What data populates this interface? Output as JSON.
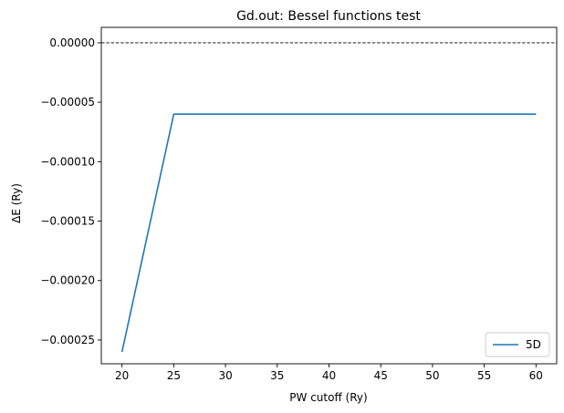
{
  "chart_data": {
    "type": "line",
    "title": "Gd.out: Bessel functions test",
    "xlabel": "PW cutoff (Ry)",
    "ylabel": "ΔE (Ry)",
    "xlim": [
      18.0,
      62.0
    ],
    "ylim": [
      -0.00027,
      1.3e-05
    ],
    "xticks": [
      20,
      25,
      30,
      35,
      40,
      45,
      50,
      55,
      60
    ],
    "xtick_labels": [
      "20",
      "25",
      "30",
      "35",
      "40",
      "45",
      "50",
      "55",
      "60"
    ],
    "yticks": [
      0.0,
      -5e-05,
      -0.0001,
      -0.00015,
      -0.0002,
      -0.00025
    ],
    "ytick_labels": [
      "0.00000",
      "−0.00005",
      "−0.00010",
      "−0.00015",
      "−0.00020",
      "−0.00025"
    ],
    "reference_line": {
      "y": 0.0,
      "style": "dashed",
      "color": "#000000"
    },
    "legend": {
      "position": "bottom-right"
    },
    "series": [
      {
        "name": "5D",
        "color": "#1f77b4",
        "x": [
          20,
          25,
          30,
          35,
          40,
          45,
          50,
          55,
          60
        ],
        "y": [
          -0.00026,
          -6e-05,
          -6e-05,
          -6e-05,
          -6e-05,
          -6e-05,
          -6e-05,
          -6e-05,
          -6e-05
        ]
      }
    ]
  }
}
